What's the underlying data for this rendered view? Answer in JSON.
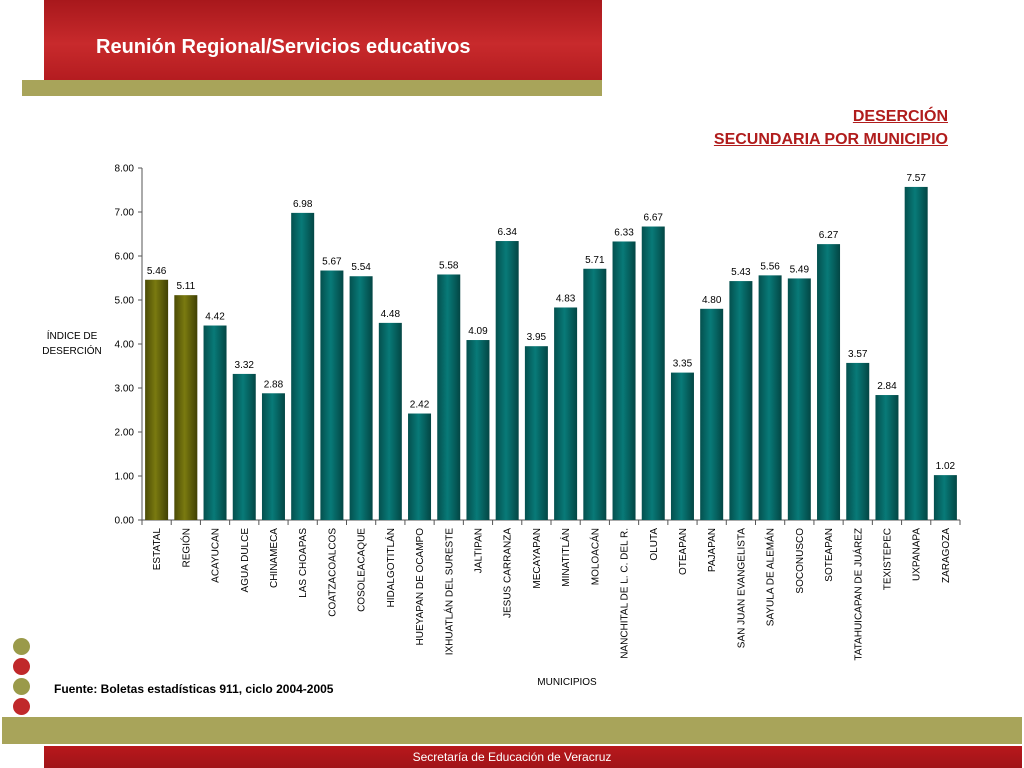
{
  "header": {
    "title": "Reunión Regional/Servicios educativos"
  },
  "slide": {
    "title_line1": "DESERCIÓN",
    "title_line2": "SECUNDARIA POR MUNICIPIO"
  },
  "source": "Fuente: Boletas estadísticas 911, ciclo 2004-2005",
  "footer": {
    "text": "Secretaría de Educación de Veracruz"
  },
  "colors": {
    "highlight_bar": "#7a7a10",
    "bar": "#087a78",
    "header_red": "#b41c20",
    "olive": "#a8a45a"
  },
  "chart_data": {
    "type": "bar",
    "ylabel_line1": "ÍNDICE DE",
    "ylabel_line2": "DESERCIÓN",
    "xlabel": "MUNICIPIOS",
    "ylim": [
      0,
      8
    ],
    "yticks": [
      "0.00",
      "1.00",
      "2.00",
      "3.00",
      "4.00",
      "5.00",
      "6.00",
      "7.00",
      "8.00"
    ],
    "grid": false,
    "highlighted": [
      "ESTATAL",
      "REGIÓN"
    ],
    "categories": [
      "ESTATAL",
      "REGIÓN",
      "ACAYUCAN",
      "AGUA DULCE",
      "CHINAMECA",
      "LAS CHOAPAS",
      "COATZACOALCOS",
      "COSOLEACAQUE",
      "HIDALGOTITLÁN",
      "HUEYAPAN DE OCAMPO",
      "IXHUATLÁN DEL SURESTE",
      "JALTIPAN",
      "JESUS CARRANZA",
      "MECAYAPAN",
      "MINATITLÁN",
      "MOLOACÁN",
      "NANCHITAL DE L. C. DEL R.",
      "OLUTA",
      "OTEAPAN",
      "PAJAPAN",
      "SAN JUAN EVANGELISTA",
      "SAYULA DE ALEMÁN",
      "SOCONUSCO",
      "SOTEAPAN",
      "TATAHUICAPAN DE JUÁREZ",
      "TEXISTEPEC",
      "UXPANAPA",
      "ZARAGOZA"
    ],
    "values": [
      5.46,
      5.11,
      4.42,
      3.32,
      2.88,
      6.98,
      5.67,
      5.54,
      4.48,
      2.42,
      5.58,
      4.09,
      6.34,
      3.95,
      4.83,
      5.71,
      6.33,
      6.67,
      3.35,
      4.8,
      5.43,
      5.56,
      5.49,
      6.27,
      3.57,
      2.84,
      7.57,
      1.02
    ],
    "labels": [
      "5.46",
      "5.11",
      "4.42",
      "3.32",
      "2.88",
      "6.98",
      "5.67",
      "5.54",
      "4.48",
      "2.42",
      "5.58",
      "4.09",
      "6.34",
      "3.95",
      "4.83",
      "5.71",
      "6.33",
      "6.67",
      "3.35",
      "4.80",
      "5.43",
      "5.56",
      "5.49",
      "6.27",
      "3.57",
      "2.84",
      "7.57",
      "1.02"
    ]
  }
}
